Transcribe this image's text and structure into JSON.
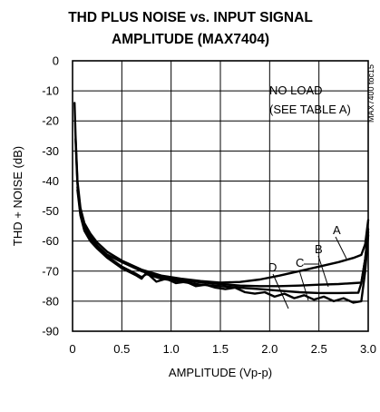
{
  "chart_data": {
    "type": "line",
    "title_line1": "THD PLUS NOISE vs. INPUT SIGNAL",
    "title_line2": "AMPLITUDE (MAX7404)",
    "xlabel": "AMPLITUDE (Vp-p)",
    "ylabel": "THD + NOISE (dB)",
    "xlim": [
      0,
      3.0
    ],
    "ylim": [
      -90,
      0
    ],
    "xticks": [
      0,
      0.5,
      1.0,
      1.5,
      2.0,
      2.5,
      3.0
    ],
    "xtick_labels": [
      "0",
      "0.5",
      "1.0",
      "1.5",
      "2.0",
      "2.5",
      "3.0"
    ],
    "yticks": [
      0,
      -10,
      -20,
      -30,
      -40,
      -50,
      -60,
      -70,
      -80,
      -90
    ],
    "ytick_labels": [
      "0",
      "-10",
      "-20",
      "-30",
      "-40",
      "-50",
      "-60",
      "-70",
      "-80",
      "-90"
    ],
    "grid": true,
    "annotation_line1": "NO LOAD",
    "annotation_line2": "(SEE TABLE A)",
    "side_code": "MAX7400 toc15",
    "series": [
      {
        "name": "A",
        "x": [
          0.02,
          0.03,
          0.05,
          0.08,
          0.12,
          0.18,
          0.25,
          0.35,
          0.5,
          0.7,
          0.9,
          1.1,
          1.3,
          1.5,
          1.7,
          1.9,
          2.1,
          2.3,
          2.5,
          2.7,
          2.85,
          2.93,
          2.97,
          3.0
        ],
        "y": [
          -14,
          -25,
          -40,
          -49,
          -54,
          -57.5,
          -60.5,
          -63.5,
          -66.5,
          -69.5,
          -71.5,
          -72.5,
          -73.3,
          -73.8,
          -73.6,
          -72.8,
          -71.5,
          -70,
          -68.5,
          -67,
          -65.6,
          -64.6,
          -61,
          -53
        ]
      },
      {
        "name": "B",
        "x": [
          0.03,
          0.05,
          0.08,
          0.12,
          0.18,
          0.25,
          0.35,
          0.5,
          0.7,
          0.9,
          1.1,
          1.3,
          1.5,
          1.7,
          1.9,
          2.1,
          2.3,
          2.5,
          2.7,
          2.85,
          2.93,
          2.97,
          3.0
        ],
        "y": [
          -26,
          -41,
          -50,
          -55,
          -58.5,
          -61.5,
          -64.5,
          -67,
          -70,
          -72,
          -73,
          -73.7,
          -74.3,
          -74.8,
          -75,
          -75,
          -74.8,
          -74.5,
          -74.3,
          -74,
          -73.8,
          -66,
          -56
        ]
      },
      {
        "name": "C",
        "x": [
          0.05,
          0.08,
          0.12,
          0.18,
          0.25,
          0.35,
          0.5,
          0.65,
          0.7,
          0.75,
          0.9,
          1.1,
          1.3,
          1.5,
          1.7,
          1.9,
          2.1,
          2.3,
          2.5,
          2.7,
          2.9,
          2.93,
          2.97,
          3.0
        ],
        "y": [
          -42,
          -51,
          -56,
          -59.5,
          -62,
          -65,
          -68.5,
          -71,
          -72,
          -71,
          -72.5,
          -73.5,
          -74.5,
          -75,
          -75.5,
          -76,
          -76.5,
          -77,
          -77.3,
          -77.3,
          -77.2,
          -74,
          -66,
          -57
        ]
      },
      {
        "name": "D",
        "x": [
          0.05,
          0.08,
          0.12,
          0.18,
          0.25,
          0.35,
          0.5,
          0.65,
          0.7,
          0.75,
          0.85,
          0.95,
          1.05,
          1.15,
          1.25,
          1.35,
          1.45,
          1.55,
          1.65,
          1.75,
          1.85,
          1.95,
          2.05,
          2.15,
          2.25,
          2.35,
          2.45,
          2.55,
          2.65,
          2.75,
          2.85,
          2.93,
          2.97,
          3.0
        ],
        "y": [
          -43,
          -51.5,
          -56.5,
          -60,
          -62.5,
          -65.5,
          -69,
          -71.5,
          -72.5,
          -70.5,
          -73.5,
          -72.5,
          -74,
          -73.5,
          -75,
          -74.5,
          -75.5,
          -76,
          -75.5,
          -77,
          -77.5,
          -77,
          -78.5,
          -77.5,
          -79,
          -78,
          -79.5,
          -78.5,
          -80,
          -79,
          -80.5,
          -80,
          -70,
          -58
        ]
      }
    ]
  }
}
